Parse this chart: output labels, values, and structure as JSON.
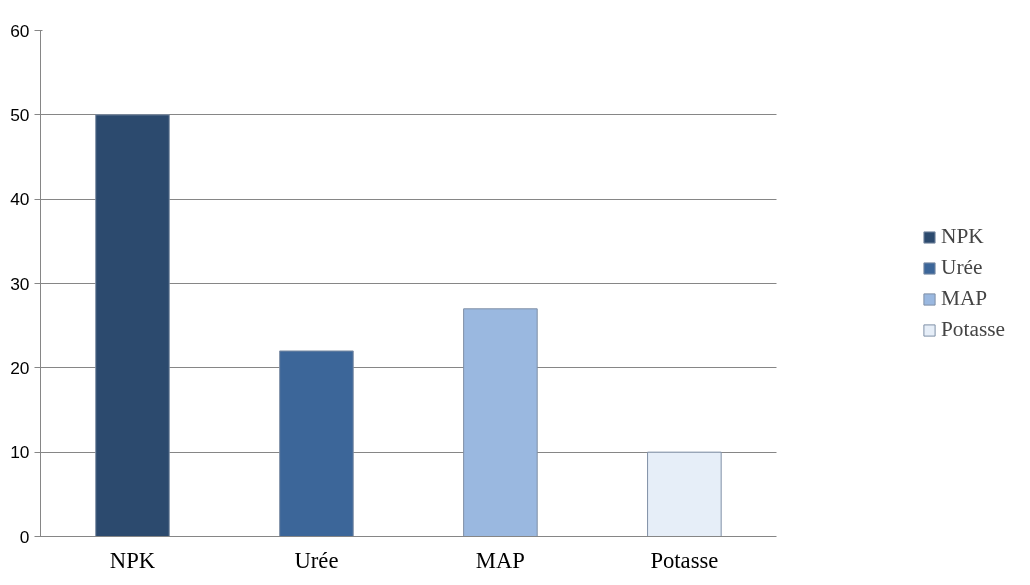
{
  "chart_data": {
    "type": "bar",
    "categories": [
      "NPK",
      "Urée",
      "MAP",
      "Potasse"
    ],
    "series": [
      {
        "name": "NPK",
        "color": "#2c4a6e",
        "values": [
          50,
          null,
          null,
          null
        ]
      },
      {
        "name": "Urée",
        "color": "#3c6699",
        "values": [
          null,
          22,
          null,
          null
        ]
      },
      {
        "name": "MAP",
        "color": "#9ab8e0",
        "values": [
          null,
          null,
          27,
          null
        ]
      },
      {
        "name": "Potasse",
        "color": "#e6eef8",
        "values": [
          null,
          null,
          null,
          10
        ]
      }
    ],
    "ylim": [
      0,
      60
    ],
    "yticks": [
      0,
      10,
      20,
      30,
      40,
      50,
      60
    ],
    "grid": "y",
    "legend": "right"
  }
}
